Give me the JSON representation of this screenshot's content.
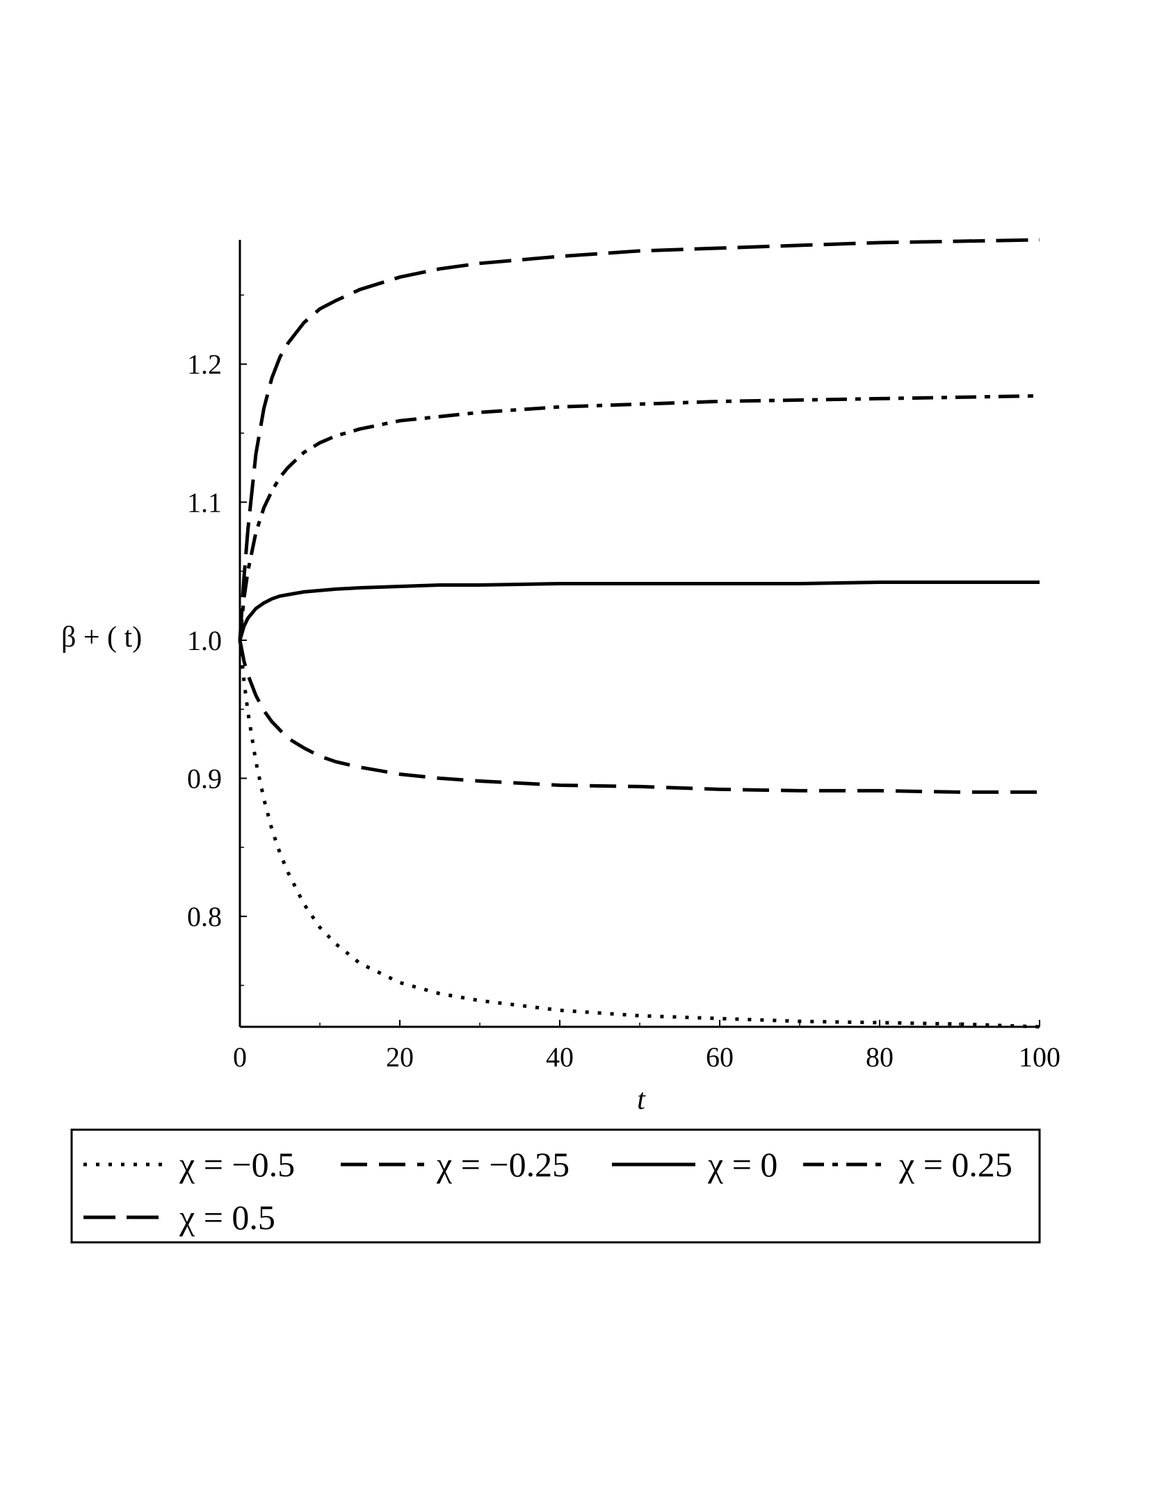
{
  "chart_data": {
    "type": "line",
    "xlabel": "t",
    "ylabel": "β + ( t)",
    "xlim": [
      0,
      100
    ],
    "ylim": [
      0.72,
      1.29
    ],
    "x_ticks": [
      0,
      20,
      40,
      60,
      80,
      100
    ],
    "x_tick_labels": [
      "0",
      "20",
      "40",
      "60",
      "80",
      "100"
    ],
    "y_ticks": [
      0.8,
      0.9,
      1.0,
      1.1,
      1.2
    ],
    "y_tick_labels": [
      "0.8",
      "0.9",
      "1.0",
      "1.1",
      "1.2"
    ],
    "grid": false,
    "legend_position": "bottom",
    "x": [
      0,
      0.5,
      1,
      2,
      3,
      4,
      5,
      6,
      8,
      10,
      12,
      15,
      20,
      25,
      30,
      40,
      50,
      60,
      70,
      80,
      90,
      100
    ],
    "series": [
      {
        "name": "χ = −0.5",
        "style": "dotted",
        "values": [
          1.0,
          0.971,
          0.948,
          0.912,
          0.885,
          0.863,
          0.846,
          0.832,
          0.809,
          0.792,
          0.78,
          0.766,
          0.752,
          0.744,
          0.739,
          0.732,
          0.728,
          0.726,
          0.724,
          0.723,
          0.722,
          0.72
        ]
      },
      {
        "name": "χ = −0.25",
        "style": "dashed",
        "values": [
          1.0,
          0.985,
          0.975,
          0.96,
          0.949,
          0.941,
          0.935,
          0.929,
          0.922,
          0.916,
          0.912,
          0.908,
          0.903,
          0.9,
          0.898,
          0.895,
          0.894,
          0.892,
          0.891,
          0.891,
          0.89,
          0.89
        ]
      },
      {
        "name": "χ = 0",
        "style": "solid",
        "values": [
          1.0,
          1.01,
          1.016,
          1.023,
          1.027,
          1.03,
          1.032,
          1.033,
          1.035,
          1.036,
          1.037,
          1.038,
          1.039,
          1.04,
          1.04,
          1.041,
          1.041,
          1.041,
          1.041,
          1.042,
          1.042,
          1.042
        ]
      },
      {
        "name": "χ = 0.25",
        "style": "dashdot",
        "values": [
          1.0,
          1.03,
          1.05,
          1.078,
          1.096,
          1.108,
          1.118,
          1.125,
          1.136,
          1.143,
          1.148,
          1.153,
          1.159,
          1.162,
          1.165,
          1.169,
          1.171,
          1.173,
          1.174,
          1.175,
          1.176,
          1.177
        ]
      },
      {
        "name": "χ = 0.5",
        "style": "longdash",
        "values": [
          1.0,
          1.045,
          1.08,
          1.135,
          1.168,
          1.19,
          1.205,
          1.215,
          1.23,
          1.24,
          1.246,
          1.254,
          1.263,
          1.269,
          1.273,
          1.278,
          1.282,
          1.284,
          1.286,
          1.288,
          1.289,
          1.29
        ]
      }
    ]
  }
}
